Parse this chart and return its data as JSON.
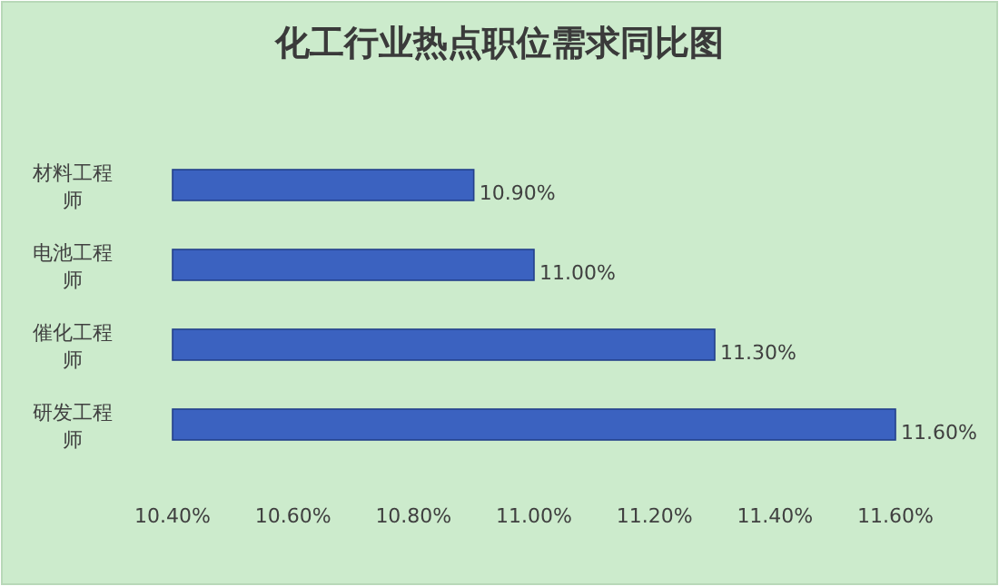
{
  "chart_data": {
    "type": "bar",
    "orientation": "horizontal",
    "title": "化工行业热点职位需求同比图",
    "categories": [
      "材料工程师",
      "电池工程师",
      "催化工程师",
      "研发工程师"
    ],
    "values": [
      10.9,
      11.0,
      11.3,
      11.6
    ],
    "color": "#3b62c0",
    "value_labels": [
      "10.90%",
      "11.00%",
      "11.30%",
      "11.60%"
    ],
    "xlim": [
      10.4,
      11.6
    ],
    "xticks": [
      {
        "value": 10.4,
        "label": "10.40%"
      },
      {
        "value": 10.6,
        "label": "10.60%"
      },
      {
        "value": 10.8,
        "label": "10.80%"
      },
      {
        "value": 11.0,
        "label": "11.00%"
      },
      {
        "value": 11.2,
        "label": "11.20%"
      },
      {
        "value": 11.4,
        "label": "11.40%"
      },
      {
        "value": 11.6,
        "label": "11.60%"
      }
    ]
  }
}
